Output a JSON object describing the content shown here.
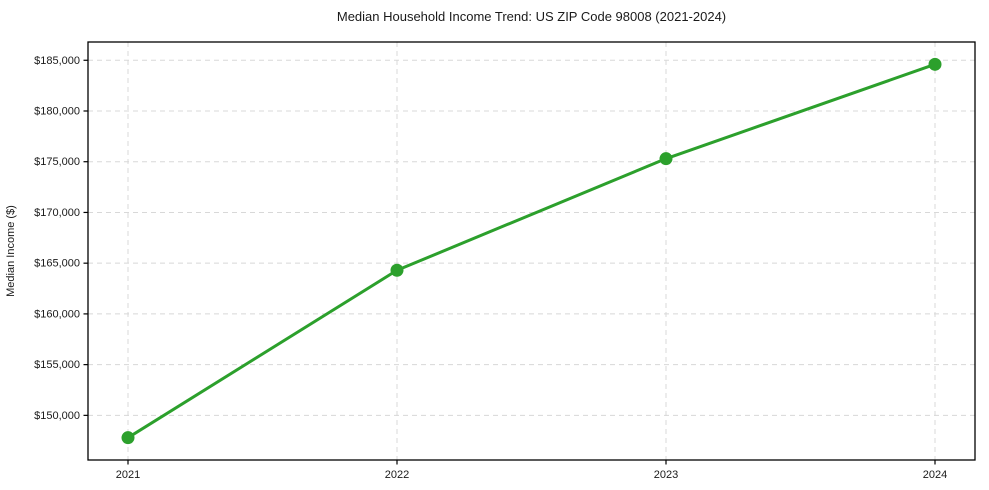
{
  "chart_data": {
    "type": "line",
    "title": "Median Household Income Trend: US ZIP Code 98008 (2021-2024)",
    "xlabel": "",
    "ylabel": "Median Income ($)",
    "categories": [
      "2021",
      "2022",
      "2023",
      "2024"
    ],
    "series": [
      {
        "name": "Median Household Income",
        "values": [
          147800,
          164300,
          175300,
          184600
        ]
      }
    ],
    "y_ticks": [
      150000,
      155000,
      160000,
      165000,
      170000,
      175000,
      180000,
      185000
    ],
    "y_tick_labels": [
      "$150,000",
      "$155,000",
      "$160,000",
      "$165,000",
      "$170,000",
      "$175,000",
      "$180,000",
      "$185,000"
    ],
    "ylim": [
      145600,
      186800
    ],
    "grid": true,
    "legend": "none",
    "colors": {
      "line": "#2ca02c",
      "marker": "#2ca02c",
      "grid": "#d8d8d8",
      "axis_border": "#000000",
      "background": "#ffffff",
      "text": "#1a1a1a"
    },
    "marker": "circle",
    "marker_radius": 6.5,
    "line_width": 3
  }
}
